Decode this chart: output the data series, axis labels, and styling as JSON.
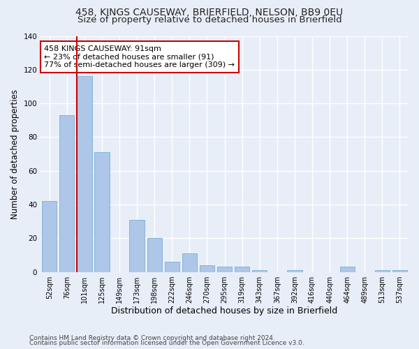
{
  "title1": "458, KINGS CAUSEWAY, BRIERFIELD, NELSON, BB9 0EU",
  "title2": "Size of property relative to detached houses in Brierfield",
  "xlabel": "Distribution of detached houses by size in Brierfield",
  "ylabel": "Number of detached properties",
  "categories": [
    "52sqm",
    "76sqm",
    "101sqm",
    "125sqm",
    "149sqm",
    "173sqm",
    "198sqm",
    "222sqm",
    "246sqm",
    "270sqm",
    "295sqm",
    "319sqm",
    "343sqm",
    "367sqm",
    "392sqm",
    "416sqm",
    "440sqm",
    "464sqm",
    "489sqm",
    "513sqm",
    "537sqm"
  ],
  "values": [
    42,
    93,
    116,
    71,
    0,
    31,
    20,
    6,
    11,
    4,
    3,
    3,
    1,
    0,
    1,
    0,
    0,
    3,
    0,
    1,
    1
  ],
  "bar_color": "#aec6e8",
  "bar_edge_color": "#7aadd4",
  "vline_x_index": 2,
  "vline_color": "#cc0000",
  "annotation_text": "458 KINGS CAUSEWAY: 91sqm\n← 23% of detached houses are smaller (91)\n77% of semi-detached houses are larger (309) →",
  "annotation_box_color": "#ffffff",
  "annotation_box_edge": "#cc0000",
  "ylim": [
    0,
    140
  ],
  "yticks": [
    0,
    20,
    40,
    60,
    80,
    100,
    120,
    140
  ],
  "footer1": "Contains HM Land Registry data © Crown copyright and database right 2024.",
  "footer2": "Contains public sector information licensed under the Open Government Licence v3.0.",
  "bg_color": "#e8eef8",
  "plot_bg_color": "#e8eef8",
  "grid_color": "#ffffff",
  "title_fontsize": 10,
  "subtitle_fontsize": 9.5,
  "tick_fontsize": 7,
  "ylabel_fontsize": 8.5,
  "xlabel_fontsize": 9,
  "annotation_fontsize": 8,
  "footer_fontsize": 6.5
}
